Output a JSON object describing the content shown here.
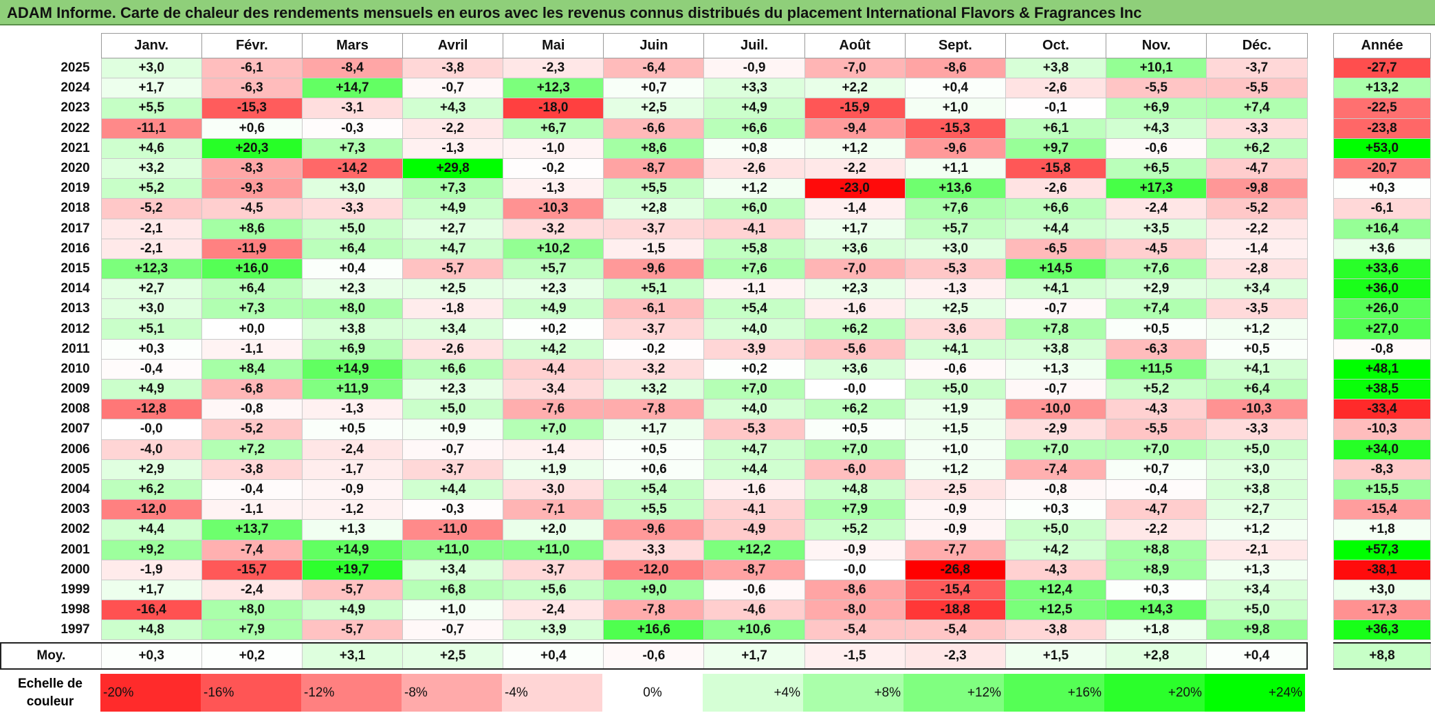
{
  "title": "ADAM Informe. Carte de chaleur des rendements mensuels en euros avec les revenus connus distribués du placement International Flavors & Fragrances Inc",
  "chart_data": {
    "type": "heatmap",
    "months": [
      "Janv.",
      "Févr.",
      "Mars",
      "Avril",
      "Mai",
      "Juin",
      "Juil.",
      "Août",
      "Sept.",
      "Oct.",
      "Nov.",
      "Déc."
    ],
    "year_header": "Année",
    "rows": [
      {
        "year": "2025",
        "values": [
          "+3,0",
          "-6,1",
          "-8,4",
          "-3,8",
          "-2,3",
          "-6,4",
          "-0,9",
          "-7,0",
          "-8,6",
          "+3,8",
          "+10,1",
          "-3,7"
        ],
        "annual": "-27,7"
      },
      {
        "year": "2024",
        "values": [
          "+1,7",
          "-6,3",
          "+14,7",
          "-0,7",
          "+12,3",
          "+0,7",
          "+3,3",
          "+2,2",
          "+0,4",
          "-2,6",
          "-5,5",
          "-5,5"
        ],
        "annual": "+13,2"
      },
      {
        "year": "2023",
        "values": [
          "+5,5",
          "-15,3",
          "-3,1",
          "+4,3",
          "-18,0",
          "+2,5",
          "+4,9",
          "-15,9",
          "+1,0",
          "-0,1",
          "+6,9",
          "+7,4"
        ],
        "annual": "-22,5"
      },
      {
        "year": "2022",
        "values": [
          "-11,1",
          "+0,6",
          "-0,3",
          "-2,2",
          "+6,7",
          "-6,6",
          "+6,6",
          "-9,4",
          "-15,3",
          "+6,1",
          "+4,3",
          "-3,3"
        ],
        "annual": "-23,8"
      },
      {
        "year": "2021",
        "values": [
          "+4,6",
          "+20,3",
          "+7,3",
          "-1,3",
          "-1,0",
          "+8,6",
          "+0,8",
          "+1,2",
          "-9,6",
          "+9,7",
          "-0,6",
          "+6,2"
        ],
        "annual": "+53,0"
      },
      {
        "year": "2020",
        "values": [
          "+3,2",
          "-8,3",
          "-14,2",
          "+29,8",
          "-0,2",
          "-8,7",
          "-2,6",
          "-2,2",
          "+1,1",
          "-15,8",
          "+6,5",
          "-4,7"
        ],
        "annual": "-20,7"
      },
      {
        "year": "2019",
        "values": [
          "+5,2",
          "-9,3",
          "+3,0",
          "+7,3",
          "-1,3",
          "+5,5",
          "+1,2",
          "-23,0",
          "+13,6",
          "-2,6",
          "+17,3",
          "-9,8"
        ],
        "annual": "+0,3"
      },
      {
        "year": "2018",
        "values": [
          "-5,2",
          "-4,5",
          "-3,3",
          "+4,9",
          "-10,3",
          "+2,8",
          "+6,0",
          "-1,4",
          "+7,6",
          "+6,6",
          "-2,4",
          "-5,2"
        ],
        "annual": "-6,1"
      },
      {
        "year": "2017",
        "values": [
          "-2,1",
          "+8,6",
          "+5,0",
          "+2,7",
          "-3,2",
          "-3,7",
          "-4,1",
          "+1,7",
          "+5,7",
          "+4,4",
          "+3,5",
          "-2,2"
        ],
        "annual": "+16,4"
      },
      {
        "year": "2016",
        "values": [
          "-2,1",
          "-11,9",
          "+6,4",
          "+4,7",
          "+10,2",
          "-1,5",
          "+5,8",
          "+3,6",
          "+3,0",
          "-6,5",
          "-4,5",
          "-1,4"
        ],
        "annual": "+3,6"
      },
      {
        "year": "2015",
        "values": [
          "+12,3",
          "+16,0",
          "+0,4",
          "-5,7",
          "+5,7",
          "-9,6",
          "+7,6",
          "-7,0",
          "-5,3",
          "+14,5",
          "+7,6",
          "-2,8"
        ],
        "annual": "+33,6"
      },
      {
        "year": "2014",
        "values": [
          "+2,7",
          "+6,4",
          "+2,3",
          "+2,5",
          "+2,3",
          "+5,1",
          "-1,1",
          "+2,3",
          "-1,3",
          "+4,1",
          "+2,9",
          "+3,4"
        ],
        "annual": "+36,0"
      },
      {
        "year": "2013",
        "values": [
          "+3,0",
          "+7,3",
          "+8,0",
          "-1,8",
          "+4,9",
          "-6,1",
          "+5,4",
          "-1,6",
          "+2,5",
          "-0,7",
          "+7,4",
          "-3,5"
        ],
        "annual": "+26,0"
      },
      {
        "year": "2012",
        "values": [
          "+5,1",
          "+0,0",
          "+3,8",
          "+3,4",
          "+0,2",
          "-3,7",
          "+4,0",
          "+6,2",
          "-3,6",
          "+7,8",
          "+0,5",
          "+1,2"
        ],
        "annual": "+27,0"
      },
      {
        "year": "2011",
        "values": [
          "+0,3",
          "-1,1",
          "+6,9",
          "-2,6",
          "+4,2",
          "-0,2",
          "-3,9",
          "-5,6",
          "+4,1",
          "+3,8",
          "-6,3",
          "+0,5"
        ],
        "annual": "-0,8"
      },
      {
        "year": "2010",
        "values": [
          "-0,4",
          "+8,4",
          "+14,9",
          "+6,6",
          "-4,4",
          "-3,2",
          "+0,2",
          "+3,6",
          "-0,6",
          "+1,3",
          "+11,5",
          "+4,1"
        ],
        "annual": "+48,1"
      },
      {
        "year": "2009",
        "values": [
          "+4,9",
          "-6,8",
          "+11,9",
          "+2,3",
          "-3,4",
          "+3,2",
          "+7,0",
          "-0,0",
          "+5,0",
          "-0,7",
          "+5,2",
          "+6,4"
        ],
        "annual": "+38,5"
      },
      {
        "year": "2008",
        "values": [
          "-12,8",
          "-0,8",
          "-1,3",
          "+5,0",
          "-7,6",
          "-7,8",
          "+4,0",
          "+6,2",
          "+1,9",
          "-10,0",
          "-4,3",
          "-10,3"
        ],
        "annual": "-33,4"
      },
      {
        "year": "2007",
        "values": [
          "-0,0",
          "-5,2",
          "+0,5",
          "+0,9",
          "+7,0",
          "+1,7",
          "-5,3",
          "+0,5",
          "+1,5",
          "-2,9",
          "-5,5",
          "-3,3"
        ],
        "annual": "-10,3"
      },
      {
        "year": "2006",
        "values": [
          "-4,0",
          "+7,2",
          "-2,4",
          "-0,7",
          "-1,4",
          "+0,5",
          "+4,7",
          "+7,0",
          "+1,0",
          "+7,0",
          "+7,0",
          "+5,0"
        ],
        "annual": "+34,0"
      },
      {
        "year": "2005",
        "values": [
          "+2,9",
          "-3,8",
          "-1,7",
          "-3,7",
          "+1,9",
          "+0,6",
          "+4,4",
          "-6,0",
          "+1,2",
          "-7,4",
          "+0,7",
          "+3,0"
        ],
        "annual": "-8,3"
      },
      {
        "year": "2004",
        "values": [
          "+6,2",
          "-0,4",
          "-0,9",
          "+4,4",
          "-3,0",
          "+5,4",
          "-1,6",
          "+4,8",
          "-2,5",
          "-0,8",
          "-0,4",
          "+3,8"
        ],
        "annual": "+15,5"
      },
      {
        "year": "2003",
        "values": [
          "-12,0",
          "-1,1",
          "-1,2",
          "-0,3",
          "-7,1",
          "+5,5",
          "-4,1",
          "+7,9",
          "-0,9",
          "+0,3",
          "-4,7",
          "+2,7"
        ],
        "annual": "-15,4"
      },
      {
        "year": "2002",
        "values": [
          "+4,4",
          "+13,7",
          "+1,3",
          "-11,0",
          "+2,0",
          "-9,6",
          "-4,9",
          "+5,2",
          "-0,9",
          "+5,0",
          "-2,2",
          "+1,2"
        ],
        "annual": "+1,8"
      },
      {
        "year": "2001",
        "values": [
          "+9,2",
          "-7,4",
          "+14,9",
          "+11,0",
          "+11,0",
          "-3,3",
          "+12,2",
          "-0,9",
          "-7,7",
          "+4,2",
          "+8,8",
          "-2,1"
        ],
        "annual": "+57,3"
      },
      {
        "year": "2000",
        "values": [
          "-1,9",
          "-15,7",
          "+19,7",
          "+3,4",
          "-3,7",
          "-12,0",
          "-8,7",
          "-0,0",
          "-26,8",
          "-4,3",
          "+8,9",
          "+1,3"
        ],
        "annual": "-38,1"
      },
      {
        "year": "1999",
        "values": [
          "+1,7",
          "-2,4",
          "-5,7",
          "+6,8",
          "+5,6",
          "+9,0",
          "-0,6",
          "-8,6",
          "-15,4",
          "+12,4",
          "+0,3",
          "+3,4"
        ],
        "annual": "+3,0"
      },
      {
        "year": "1998",
        "values": [
          "-16,4",
          "+8,0",
          "+4,9",
          "+1,0",
          "-2,4",
          "-7,8",
          "-4,6",
          "-8,0",
          "-18,8",
          "+12,5",
          "+14,3",
          "+5,0"
        ],
        "annual": "-17,3"
      },
      {
        "year": "1997",
        "values": [
          "+4,8",
          "+7,9",
          "-5,7",
          "-0,7",
          "+3,9",
          "+16,6",
          "+10,6",
          "-5,4",
          "-5,4",
          "-3,8",
          "+1,8",
          "+9,8"
        ],
        "annual": "+36,3"
      }
    ],
    "average": {
      "label": "Moy.",
      "values": [
        "+0,3",
        "+0,2",
        "+3,1",
        "+2,5",
        "+0,4",
        "-0,6",
        "+1,7",
        "-1,5",
        "-2,3",
        "+1,5",
        "+2,8",
        "+0,4"
      ],
      "annual": "+8,8"
    },
    "scale": {
      "label": "Echelle de couleur",
      "steps": [
        {
          "label": "-20%",
          "value": -20
        },
        {
          "label": "-16%",
          "value": -16
        },
        {
          "label": "-12%",
          "value": -12
        },
        {
          "label": "-8%",
          "value": -8
        },
        {
          "label": "-4%",
          "value": -4
        },
        {
          "label": "0%",
          "value": 0
        },
        {
          "label": "+4%",
          "value": 4
        },
        {
          "label": "+8%",
          "value": 8
        },
        {
          "label": "+12%",
          "value": 12
        },
        {
          "label": "+16%",
          "value": 16
        },
        {
          "label": "+20%",
          "value": 20
        },
        {
          "label": "+24%",
          "value": 24
        }
      ]
    },
    "colors": {
      "negative": "#ff0000",
      "neutral": "#ffffff",
      "positive": "#00ff00"
    }
  }
}
